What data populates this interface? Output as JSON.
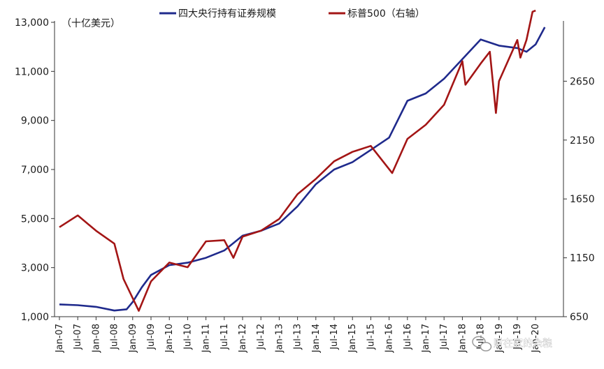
{
  "chart_data": {
    "type": "line",
    "unit_label": "（十亿美元）",
    "x_ticks": [
      "Jan-07",
      "Jul-07",
      "Jan-08",
      "Jul-08",
      "Jan-09",
      "Jul-09",
      "Jan-10",
      "Jul-10",
      "Jan-11",
      "Jul-11",
      "Jan-12",
      "Jul-12",
      "Jan-13",
      "Jul-13",
      "Jan-14",
      "Jul-14",
      "Jan-15",
      "Jul-15",
      "Jan-16",
      "Jul-16",
      "Jan-17",
      "Jul-17",
      "Jan-18",
      "Jul-18",
      "Jan-19",
      "Jul-19",
      "Jan-20"
    ],
    "y_left": {
      "ticks": [
        "1,000",
        "3,000",
        "5,000",
        "7,000",
        "9,000",
        "11,000",
        "13,000"
      ],
      "range": [
        1000,
        13000
      ]
    },
    "y_right": {
      "ticks": [
        "650",
        "1150",
        "1650",
        "2150",
        "2650"
      ],
      "range": [
        650,
        3150
      ]
    },
    "legend_position": "top-center",
    "series": [
      {
        "name": "四大央行持有证券规模",
        "axis": "left",
        "color": "#1f2a8c",
        "points": [
          [
            "Jan-07",
            1500
          ],
          [
            "Jul-07",
            1470
          ],
          [
            "Jan-08",
            1400
          ],
          [
            "Jul-08",
            1250
          ],
          [
            "Nov-08",
            1300
          ],
          [
            "Jan-09",
            1600
          ],
          [
            "Apr-09",
            2200
          ],
          [
            "Jul-09",
            2700
          ],
          [
            "Jan-10",
            3100
          ],
          [
            "Jul-10",
            3200
          ],
          [
            "Jan-11",
            3400
          ],
          [
            "Jul-11",
            3700
          ],
          [
            "Jan-12",
            4300
          ],
          [
            "Jul-12",
            4500
          ],
          [
            "Jan-13",
            4800
          ],
          [
            "Jul-13",
            5500
          ],
          [
            "Jan-14",
            6400
          ],
          [
            "Jul-14",
            7000
          ],
          [
            "Jan-15",
            7300
          ],
          [
            "Jul-15",
            7800
          ],
          [
            "Jan-16",
            8300
          ],
          [
            "Jul-16",
            9800
          ],
          [
            "Jan-17",
            10100
          ],
          [
            "Jul-17",
            10700
          ],
          [
            "Jan-18",
            11500
          ],
          [
            "Jul-18",
            12300
          ],
          [
            "Jan-19",
            12050
          ],
          [
            "Jul-19",
            11950
          ],
          [
            "Oct-19",
            11800
          ],
          [
            "Jan-20",
            12100
          ],
          [
            "Apr-20",
            12800
          ]
        ]
      },
      {
        "name": "标普500（右轴）",
        "axis": "right",
        "color": "#a31515",
        "points": [
          [
            "Jan-07",
            1410
          ],
          [
            "Jul-07",
            1510
          ],
          [
            "Jan-08",
            1380
          ],
          [
            "Jul-08",
            1270
          ],
          [
            "Oct-08",
            970
          ],
          [
            "Mar-09",
            700
          ],
          [
            "Jul-09",
            950
          ],
          [
            "Jan-10",
            1110
          ],
          [
            "Jul-10",
            1070
          ],
          [
            "Jan-11",
            1290
          ],
          [
            "Jul-11",
            1300
          ],
          [
            "Oct-11",
            1150
          ],
          [
            "Jan-12",
            1330
          ],
          [
            "Jul-12",
            1380
          ],
          [
            "Jan-13",
            1480
          ],
          [
            "Jul-13",
            1690
          ],
          [
            "Jan-14",
            1820
          ],
          [
            "Jul-14",
            1970
          ],
          [
            "Jan-15",
            2050
          ],
          [
            "Jul-15",
            2100
          ],
          [
            "Feb-16",
            1870
          ],
          [
            "Jul-16",
            2160
          ],
          [
            "Jan-17",
            2280
          ],
          [
            "Jul-17",
            2450
          ],
          [
            "Jan-18",
            2820
          ],
          [
            "Feb-18",
            2620
          ],
          [
            "Jul-18",
            2800
          ],
          [
            "Oct-18",
            2900
          ],
          [
            "Dec-18",
            2380
          ],
          [
            "Jan-19",
            2650
          ],
          [
            "Jul-19",
            3000
          ],
          [
            "Aug-19",
            2850
          ],
          [
            "Oct-19",
            3000
          ],
          [
            "Dec-19",
            3240
          ],
          [
            "Jan-20",
            3250
          ]
        ]
      }
    ]
  },
  "watermark": {
    "text": "财在家的余粮",
    "icon": "wechat-icon"
  }
}
